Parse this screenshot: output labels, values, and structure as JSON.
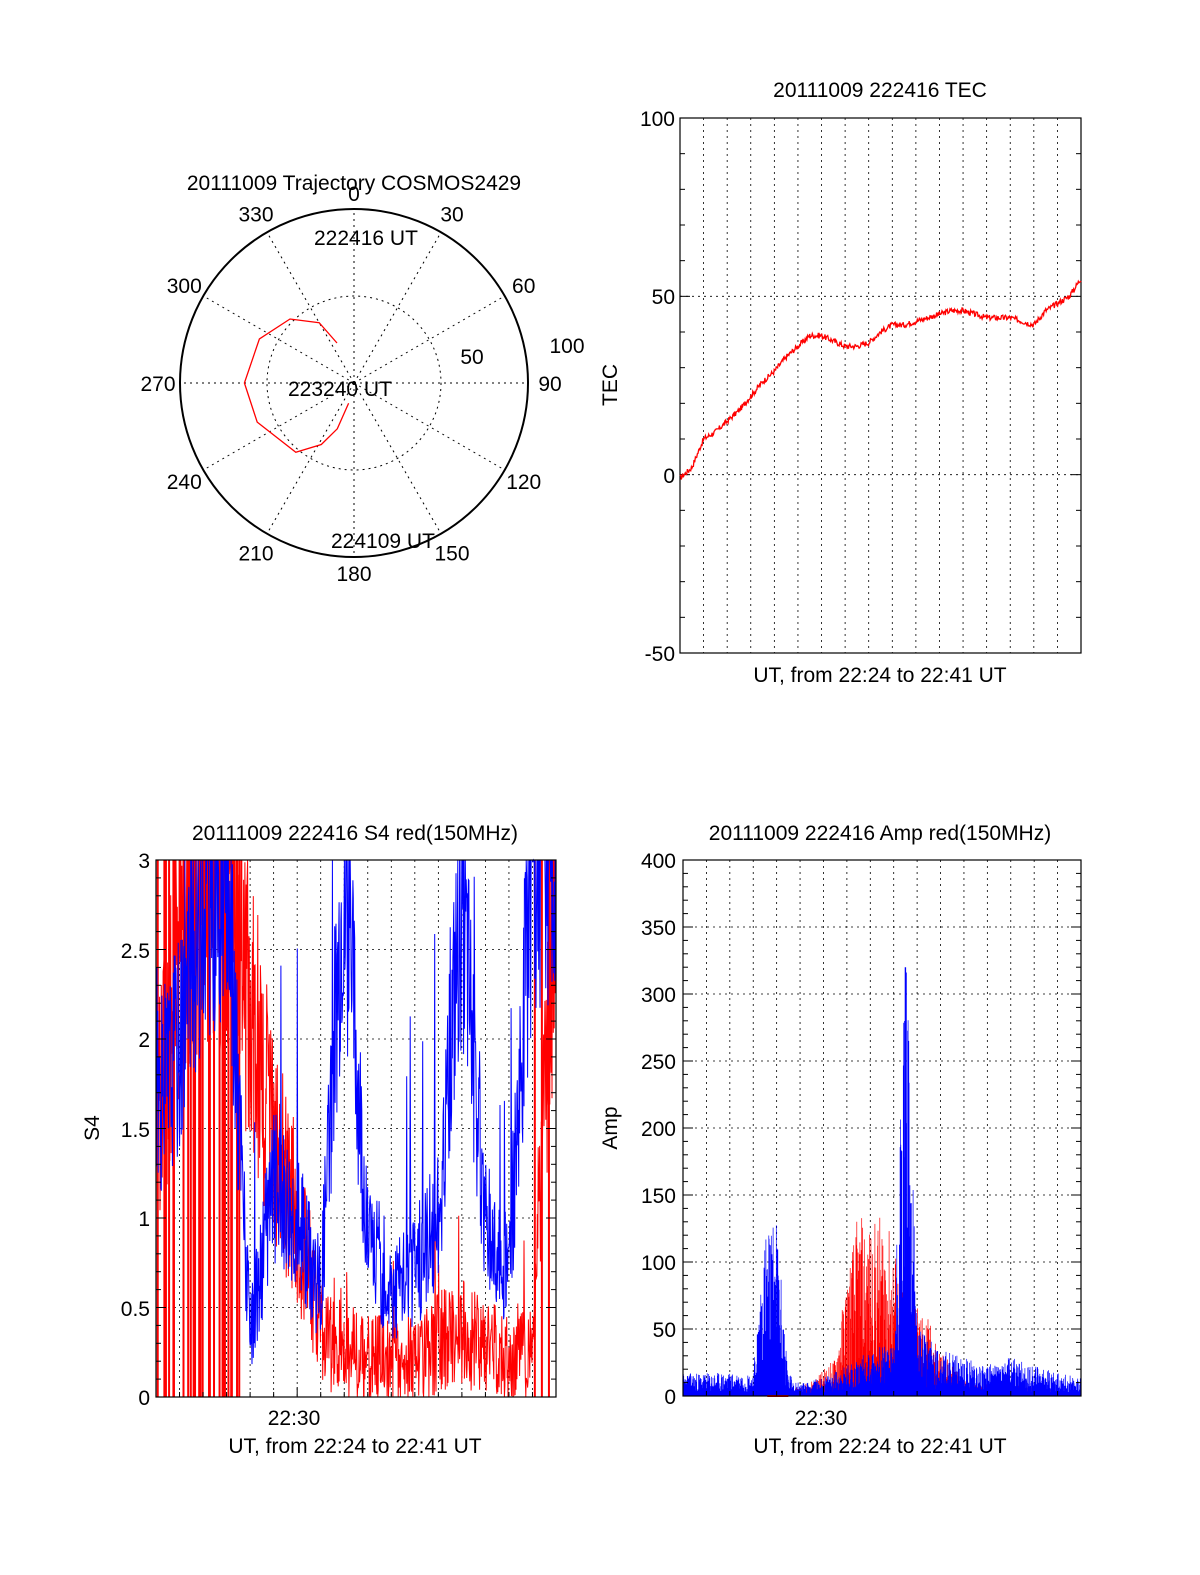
{
  "polar": {
    "title": "20111009 Trajectory COSMOS2429",
    "angle_labels": [
      "0",
      "30",
      "60",
      "90",
      "120",
      "150",
      "180",
      "210",
      "240",
      "270",
      "300",
      "330"
    ],
    "radial_labels": [
      "50",
      "100"
    ],
    "trajectory_labels": [
      "222416 UT",
      "223240 UT",
      "224109 UT"
    ],
    "trajectory_color": "#ff0000"
  },
  "tec": {
    "title": "20111009 222416 TEC",
    "ylabel": "TEC",
    "xlabel": "UT, from 22:24 to 22:41 UT",
    "ytick_labels": [
      "100",
      "50",
      "0",
      "-50"
    ],
    "series_color": "#ff0000"
  },
  "s4": {
    "title": "20111009 222416 S4 red(150MHz)",
    "ylabel": "S4",
    "xlabel": "UT, from 22:24 to 22:41 UT",
    "ytick_labels": [
      "3",
      "2.5",
      "2",
      "1.5",
      "1",
      "0.5",
      "0"
    ],
    "xtick_labels": [
      "22:30"
    ],
    "colors": [
      "#ff0000",
      "#0000ff"
    ]
  },
  "amp": {
    "title": "20111009 222416 Amp red(150MHz)",
    "ylabel": "Amp",
    "xlabel": "UT, from 22:24 to 22:41 UT",
    "ytick_labels": [
      "400",
      "350",
      "300",
      "250",
      "200",
      "150",
      "100",
      "50",
      "0"
    ],
    "xtick_labels": [
      "22:30"
    ],
    "colors": [
      "#ff0000",
      "#0000ff"
    ]
  },
  "chart_data": [
    {
      "type": "scatter",
      "title": "20111009 Trajectory COSMOS2429",
      "projection": "polar",
      "axis_orientation": "0 at top, angles increase clockwise",
      "rlim": [
        100,
        0
      ],
      "angle_ticks": [
        0,
        30,
        60,
        90,
        120,
        150,
        180,
        210,
        240,
        270,
        300,
        330
      ],
      "series": [
        {
          "azimuth_deg": [
            337,
            330,
            315,
            295,
            270,
            248,
            220,
            208,
            200,
            195
          ],
          "radius": [
            75,
            60,
            48,
            40,
            37,
            40,
            48,
            60,
            72,
            88
          ]
        }
      ],
      "annotations": [
        "222416 UT",
        "223240 UT",
        "224109 UT"
      ],
      "grid": true
    },
    {
      "type": "line",
      "title": "20111009 222416 TEC",
      "xlabel": "UT, from 22:24 to 22:41 UT",
      "ylabel": "TEC",
      "xlim_minutes_after_22_24": [
        0,
        17
      ],
      "ylim": [
        -50,
        100
      ],
      "yticks": [
        100,
        50,
        0,
        -50
      ],
      "grid": true,
      "series": [
        {
          "x": [
            0,
            0.5,
            1,
            1.5,
            2,
            2.5,
            3,
            3.5,
            4,
            4.5,
            5,
            5.5,
            6,
            7,
            7.5,
            8,
            8.5,
            9,
            9.5,
            10,
            10.5,
            11,
            11.5,
            12,
            12.5,
            13,
            13.5,
            14,
            14.5,
            15,
            15.5,
            16,
            16.5,
            17
          ],
          "values": [
            -1,
            2,
            10,
            12,
            15,
            18,
            22,
            26,
            29,
            33,
            36,
            39,
            39,
            36,
            36,
            37,
            40,
            42,
            42,
            43,
            44,
            45,
            46,
            46,
            45,
            44,
            44,
            44,
            43,
            42,
            46,
            48,
            50,
            55
          ]
        }
      ]
    },
    {
      "type": "line",
      "title": "20111009 222416 S4 red(150MHz)",
      "xlabel": "UT, from 22:24 to 22:41 UT",
      "ylabel": "S4",
      "xlim": [
        "22:24",
        "22:41"
      ],
      "ylim": [
        0,
        3
      ],
      "yticks": [
        0,
        0.5,
        1,
        1.5,
        2,
        2.5,
        3
      ],
      "xticks": [
        "22:30"
      ],
      "grid": true,
      "series": [
        {
          "x_minutes_after_22_24": [
            0,
            1,
            2,
            3,
            4,
            5,
            6,
            7,
            8,
            9,
            10,
            11,
            12,
            13,
            14,
            15,
            16,
            17
          ],
          "values": [
            1.5,
            2.5,
            3,
            3,
            2.2,
            1.5,
            1.0,
            0.35,
            0.25,
            0.2,
            0.25,
            0.2,
            0.3,
            0.35,
            0.3,
            0.2,
            0.25,
            3
          ],
          "color": "#ff0000"
        },
        {
          "x_minutes_after_22_24": [
            0,
            1,
            2,
            3,
            4,
            5,
            6,
            7,
            8,
            9,
            10,
            11,
            12,
            13,
            14,
            15,
            16,
            17
          ],
          "values": [
            1.6,
            2.0,
            2.8,
            3,
            0.3,
            1.2,
            1.0,
            0.6,
            3,
            0.9,
            0.6,
            0.7,
            1.0,
            2.8,
            1.0,
            0.7,
            3,
            3
          ],
          "color": "#0000ff"
        }
      ]
    },
    {
      "type": "line",
      "title": "20111009 222416 Amp red(150MHz)",
      "xlabel": "UT, from 22:24 to 22:41 UT",
      "ylabel": "Amp",
      "xlim": [
        "22:24",
        "22:41"
      ],
      "ylim": [
        0,
        400
      ],
      "yticks": [
        0,
        50,
        100,
        150,
        200,
        250,
        300,
        350,
        400
      ],
      "xticks": [
        "22:30"
      ],
      "grid": true,
      "series": [
        {
          "x_minutes_after_22_24": [
            0,
            4,
            5.5,
            6.5,
            7,
            7.5,
            8,
            8.5,
            9,
            9.5,
            10,
            10.5,
            11,
            11.5,
            12,
            15.5,
            17
          ],
          "values": [
            0,
            0,
            10,
            25,
            80,
            120,
            110,
            120,
            100,
            70,
            60,
            50,
            30,
            20,
            10,
            5,
            0
          ],
          "color": "#ff0000"
        },
        {
          "x_minutes_after_22_24": [
            0,
            3,
            3.5,
            4,
            4.5,
            5,
            6,
            7,
            8,
            9,
            9.5,
            10,
            11,
            12,
            13,
            14,
            15,
            16,
            17
          ],
          "values": [
            15,
            15,
            110,
            115,
            15,
            8,
            12,
            20,
            30,
            35,
            320,
            45,
            30,
            25,
            20,
            25,
            20,
            15,
            12
          ],
          "color": "#0000ff"
        }
      ]
    }
  ]
}
